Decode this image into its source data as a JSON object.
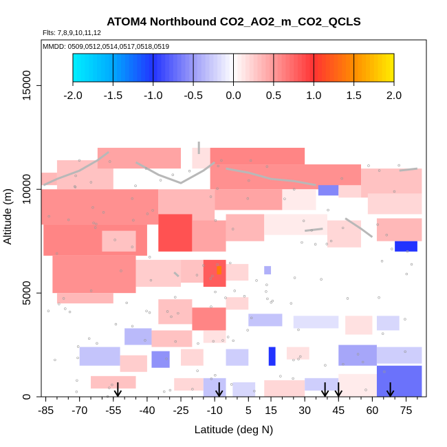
{
  "chart_data": {
    "type": "heatmap",
    "title": "ATOM4 Northbound CO2_AO2_m_CO2_QCLS",
    "subtitle_flights": "Flts: 7,8,9,10,11,12",
    "subtitle_dates": "MMDD: 0509,0512,0514,0517,0518,0519",
    "xlabel": "Latitude (deg N)",
    "ylabel": "Altitude (m)",
    "xlim": [
      -87,
      84
    ],
    "ylim": [
      0,
      17200
    ],
    "x_ticks": [
      -85,
      -70,
      -55,
      -40,
      -25,
      -10,
      5,
      15,
      30,
      45,
      60,
      75
    ],
    "y_ticks": [
      0,
      5000,
      10000,
      15000
    ],
    "color_scale": {
      "range": [
        -2.0,
        2.0
      ],
      "ticks": [
        "-2.0",
        "-1.5",
        "-1.0",
        "-0.5",
        "0.0",
        "0.5",
        "1.0",
        "1.5",
        "2.0"
      ],
      "colors": [
        {
          "value": -2.0,
          "color": "#00f0ff"
        },
        {
          "value": -1.5,
          "color": "#00a8ff"
        },
        {
          "value": -1.0,
          "color": "#2233ff"
        },
        {
          "value": -0.5,
          "color": "#9c9cf8"
        },
        {
          "value": 0.0,
          "color": "#ffffff"
        },
        {
          "value": 0.5,
          "color": "#ff9a9a"
        },
        {
          "value": 1.0,
          "color": "#ff3333"
        },
        {
          "value": 1.5,
          "color": "#ff8c00"
        },
        {
          "value": 2.0,
          "color": "#ffee00"
        }
      ]
    },
    "arrows_latitude": [
      -53,
      -8,
      39,
      45,
      68
    ],
    "cells": [
      {
        "lat": [
          -87,
          -80
        ],
        "alt": [
          10200,
          10800
        ],
        "v": 0.35
      },
      {
        "lat": [
          -80,
          -55
        ],
        "alt": [
          10000,
          11400
        ],
        "v": 0.3
      },
      {
        "lat": [
          -62,
          -25
        ],
        "alt": [
          11000,
          12000
        ],
        "v": 0.45
      },
      {
        "lat": [
          -20,
          -12
        ],
        "alt": [
          11000,
          12000
        ],
        "v": 0.15
      },
      {
        "lat": [
          -12,
          30
        ],
        "alt": [
          11200,
          12000
        ],
        "v": 0.6
      },
      {
        "lat": [
          -12,
          55
        ],
        "alt": [
          10000,
          11200
        ],
        "v": 0.55
      },
      {
        "lat": [
          55,
          82
        ],
        "alt": [
          9600,
          11000
        ],
        "v": 0.3
      },
      {
        "lat": [
          -87,
          -35
        ],
        "alt": [
          8300,
          10000
        ],
        "v": 0.55
      },
      {
        "lat": [
          -35,
          -10
        ],
        "alt": [
          8500,
          10000
        ],
        "v": 0.35
      },
      {
        "lat": [
          -10,
          20
        ],
        "alt": [
          9000,
          10000
        ],
        "v": 0.45
      },
      {
        "lat": [
          20,
          35
        ],
        "alt": [
          9000,
          10000
        ],
        "v": 0.1
      },
      {
        "lat": [
          36,
          45
        ],
        "alt": [
          9700,
          10200
        ],
        "v": -0.6
      },
      {
        "lat": [
          45,
          55
        ],
        "alt": [
          9600,
          10200
        ],
        "v": 0.2
      },
      {
        "lat": [
          58,
          82
        ],
        "alt": [
          8800,
          9800
        ],
        "v": 0.2
      },
      {
        "lat": [
          -86,
          -40
        ],
        "alt": [
          6800,
          8300
        ],
        "v": 0.6
      },
      {
        "lat": [
          -60,
          -45
        ],
        "alt": [
          7000,
          8000
        ],
        "v": 0.3
      },
      {
        "lat": [
          -35,
          -20
        ],
        "alt": [
          7000,
          8800
        ],
        "v": 0.85
      },
      {
        "lat": [
          -20,
          -5
        ],
        "alt": [
          7000,
          8500
        ],
        "v": 0.45
      },
      {
        "lat": [
          -5,
          12
        ],
        "alt": [
          7500,
          8800
        ],
        "v": 0.35
      },
      {
        "lat": [
          12,
          40
        ],
        "alt": [
          7800,
          8800
        ],
        "v": 0.1
      },
      {
        "lat": [
          40,
          55
        ],
        "alt": [
          7200,
          8500
        ],
        "v": 0.2
      },
      {
        "lat": [
          62,
          82
        ],
        "alt": [
          7500,
          8600
        ],
        "v": 0.35
      },
      {
        "lat": [
          70,
          80
        ],
        "alt": [
          7000,
          7500
        ],
        "v": -1.0
      },
      {
        "lat": [
          -82,
          -45
        ],
        "alt": [
          5000,
          6800
        ],
        "v": 0.55
      },
      {
        "lat": [
          -45,
          -25
        ],
        "alt": [
          5300,
          6600
        ],
        "v": 0.25
      },
      {
        "lat": [
          -25,
          -12
        ],
        "alt": [
          5500,
          6600
        ],
        "v": 0.3
      },
      {
        "lat": [
          -15,
          -5
        ],
        "alt": [
          5300,
          6600
        ],
        "v": 0.8
      },
      {
        "lat": [
          -9,
          -7
        ],
        "alt": [
          5900,
          6300
        ],
        "v": 1.4
      },
      {
        "lat": [
          -5,
          5
        ],
        "alt": [
          5600,
          6400
        ],
        "v": 0.2
      },
      {
        "lat": [
          12,
          15
        ],
        "alt": [
          5900,
          6300
        ],
        "v": -0.4
      },
      {
        "lat": [
          -80,
          -55
        ],
        "alt": [
          4500,
          5000
        ],
        "v": 0.35
      },
      {
        "lat": [
          -35,
          -20
        ],
        "alt": [
          3500,
          4700
        ],
        "v": 0.3
      },
      {
        "lat": [
          -20,
          -5
        ],
        "alt": [
          3200,
          4300
        ],
        "v": 0.6
      },
      {
        "lat": [
          -5,
          5
        ],
        "alt": [
          4200,
          4800
        ],
        "v": 0.2
      },
      {
        "lat": [
          5,
          20
        ],
        "alt": [
          3400,
          4000
        ],
        "v": -0.3
      },
      {
        "lat": [
          25,
          45
        ],
        "alt": [
          3300,
          3900
        ],
        "v": -0.15
      },
      {
        "lat": [
          48,
          60
        ],
        "alt": [
          3000,
          3900
        ],
        "v": 0.15
      },
      {
        "lat": [
          62,
          72
        ],
        "alt": [
          3200,
          3900
        ],
        "v": -0.2
      },
      {
        "lat": [
          -50,
          -38
        ],
        "alt": [
          2500,
          3300
        ],
        "v": -0.35
      },
      {
        "lat": [
          -38,
          -20
        ],
        "alt": [
          2400,
          3200
        ],
        "v": 0.3
      },
      {
        "lat": [
          -15,
          -5
        ],
        "alt": [
          2600,
          3200
        ],
        "v": 0.15
      },
      {
        "lat": [
          -70,
          -52
        ],
        "alt": [
          1500,
          2400
        ],
        "v": -0.3
      },
      {
        "lat": [
          -52,
          -40
        ],
        "alt": [
          1200,
          2000
        ],
        "v": 0.25
      },
      {
        "lat": [
          -38,
          -30
        ],
        "alt": [
          1400,
          2200
        ],
        "v": -0.55
      },
      {
        "lat": [
          -25,
          -15
        ],
        "alt": [
          1500,
          2300
        ],
        "v": 0.2
      },
      {
        "lat": [
          -5,
          5
        ],
        "alt": [
          1500,
          2300
        ],
        "v": -0.25
      },
      {
        "lat": [
          14,
          17
        ],
        "alt": [
          1500,
          2400
        ],
        "v": -1.0
      },
      {
        "lat": [
          22,
          32
        ],
        "alt": [
          1800,
          2400
        ],
        "v": 0.15
      },
      {
        "lat": [
          45,
          62
        ],
        "alt": [
          1500,
          2500
        ],
        "v": -0.45
      },
      {
        "lat": [
          62,
          82
        ],
        "alt": [
          1600,
          2400
        ],
        "v": -0.25
      },
      {
        "lat": [
          -65,
          -45
        ],
        "alt": [
          400,
          1000
        ],
        "v": 0.3
      },
      {
        "lat": [
          -28,
          -15
        ],
        "alt": [
          300,
          900
        ],
        "v": 0.2
      },
      {
        "lat": [
          -15,
          -5
        ],
        "alt": [
          0,
          900
        ],
        "v": -0.3
      },
      {
        "lat": [
          -2,
          8
        ],
        "alt": [
          0,
          700
        ],
        "v": -0.2
      },
      {
        "lat": [
          12,
          30
        ],
        "alt": [
          0,
          800
        ],
        "v": 0.2
      },
      {
        "lat": [
          30,
          45
        ],
        "alt": [
          300,
          900
        ],
        "v": -0.25
      },
      {
        "lat": [
          45,
          62
        ],
        "alt": [
          0,
          1100
        ],
        "v": 0.1
      },
      {
        "lat": [
          62,
          82
        ],
        "alt": [
          0,
          1500
        ],
        "v": -0.7
      }
    ],
    "flight_tracks": [
      [
        [
          -86,
          10200
        ],
        [
          -80,
          10500
        ],
        [
          -70,
          10900
        ],
        [
          -62,
          11400
        ],
        [
          -57,
          11800
        ]
      ],
      [
        [
          -45,
          11300
        ],
        [
          -35,
          10700
        ],
        [
          -25,
          10300
        ],
        [
          -15,
          10900
        ],
        [
          -10,
          11300
        ]
      ],
      [
        [
          -5,
          11000
        ],
        [
          5,
          10800
        ],
        [
          15,
          10500
        ],
        [
          25,
          10400
        ],
        [
          35,
          10200
        ]
      ],
      [
        [
          48,
          8600
        ],
        [
          55,
          8100
        ],
        [
          60,
          7700
        ]
      ],
      [
        [
          30,
          8000
        ],
        [
          38,
          8100
        ]
      ],
      [
        [
          72,
          10900
        ],
        [
          80,
          11000
        ]
      ],
      [
        [
          -17,
          12300
        ],
        [
          -17,
          11700
        ]
      ],
      [
        [
          -28,
          6000
        ],
        [
          -26,
          5800
        ]
      ]
    ]
  }
}
